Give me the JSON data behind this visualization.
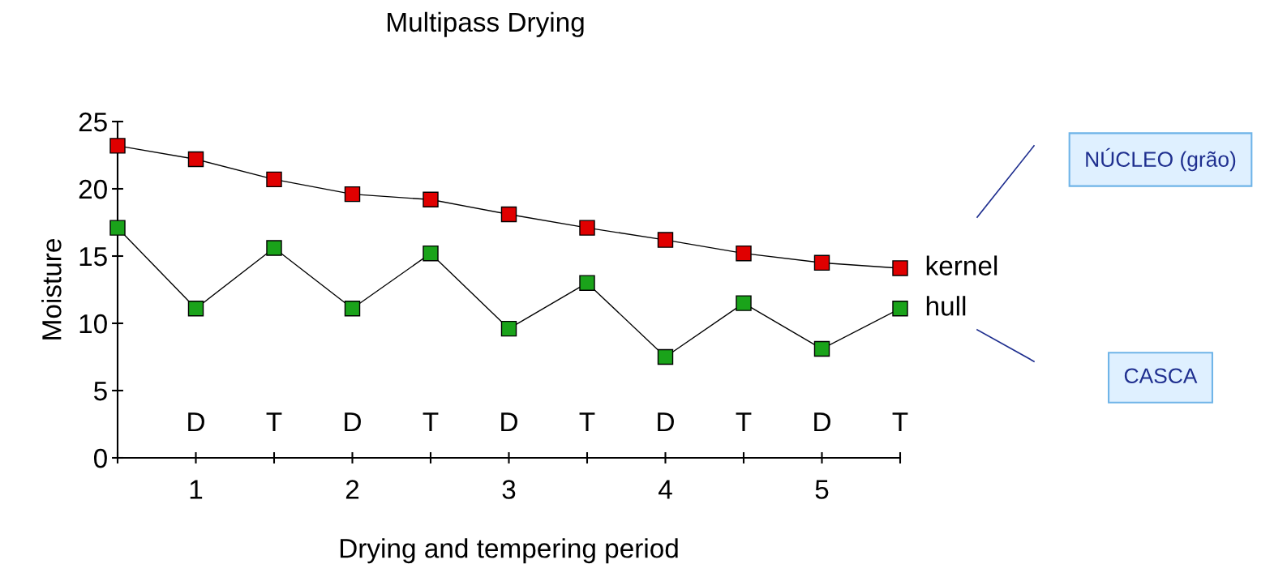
{
  "chart_data": {
    "type": "line",
    "title": "Multipass Drying",
    "xlabel": "Drying and tempering period",
    "ylabel": "Moisture",
    "x": [
      0.5,
      1,
      1.5,
      2,
      2.5,
      3,
      3.5,
      4,
      4.5,
      5,
      5.5
    ],
    "series": [
      {
        "name": "kernel",
        "color": "#e00000",
        "values": [
          23.2,
          22.2,
          20.7,
          19.6,
          19.2,
          18.1,
          17.1,
          16.2,
          15.2,
          14.5,
          14.1
        ]
      },
      {
        "name": "hull",
        "color": "#1aa31a",
        "values": [
          17.1,
          11.1,
          15.6,
          11.1,
          15.2,
          9.6,
          13.0,
          7.5,
          11.5,
          8.1,
          11.1
        ]
      }
    ],
    "xlim": [
      0.5,
      5.5
    ],
    "xticks": [
      {
        "value": 0.5,
        "label": null
      },
      1,
      {
        "value": 1.5,
        "label": null
      },
      2,
      {
        "value": 2.5,
        "label": null
      },
      3,
      {
        "value": 3.5,
        "label": null
      },
      4,
      {
        "value": 4.5,
        "label": null
      },
      5,
      {
        "value": 5.5,
        "label": null
      }
    ],
    "ylim": [
      0,
      25
    ],
    "yticks": [
      0,
      5,
      10,
      15,
      20,
      25
    ],
    "marker": "square",
    "line_style": "solid",
    "grid": false,
    "legend": false,
    "annotations": [
      "D",
      "T",
      "D",
      "T",
      "D",
      "T",
      "D",
      "T",
      "D",
      "T",
      "NÚCLEO (grão)",
      "CASCA"
    ]
  }
}
